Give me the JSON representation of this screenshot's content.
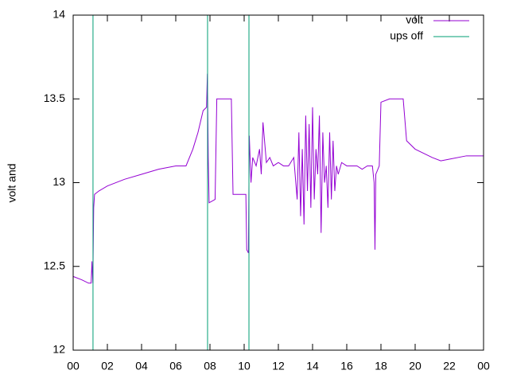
{
  "chart_data": {
    "type": "line",
    "ylabel": "volt and",
    "xlim": [
      0,
      24
    ],
    "xticks": [
      {
        "value": 0,
        "label": "00"
      },
      {
        "value": 2,
        "label": "02"
      },
      {
        "value": 4,
        "label": "04"
      },
      {
        "value": 6,
        "label": "06"
      },
      {
        "value": 8,
        "label": "08"
      },
      10,
      12,
      14,
      16,
      18,
      20,
      22,
      {
        "value": 24,
        "label": "00"
      }
    ],
    "ylim": [
      12,
      14
    ],
    "yticks": [
      12,
      12.5,
      13,
      13.5,
      14
    ],
    "legend": "top-right",
    "series": [
      {
        "name": "volt",
        "color": "#9400d3",
        "x": [
          0,
          0.5,
          0.9,
          1.05,
          1.1,
          1.15,
          1.2,
          1.25,
          1.5,
          2,
          3,
          4,
          5,
          6,
          6.6,
          7,
          7.3,
          7.6,
          7.8,
          7.85,
          7.9,
          7.95,
          8.3,
          8.4,
          9.25,
          9.35,
          10.1,
          10.15,
          10.25,
          10.3,
          10.4,
          10.5,
          10.7,
          10.9,
          11.0,
          11.1,
          11.3,
          11.5,
          11.7,
          12.0,
          12.3,
          12.6,
          12.9,
          13.1,
          13.2,
          13.3,
          13.4,
          13.5,
          13.6,
          13.7,
          13.8,
          13.9,
          14.0,
          14.1,
          14.2,
          14.3,
          14.4,
          14.5,
          14.6,
          14.7,
          14.8,
          14.9,
          15.0,
          15.1,
          15.2,
          15.3,
          15.4,
          15.5,
          15.7,
          16.0,
          16.3,
          16.6,
          16.9,
          17.2,
          17.5,
          17.6,
          17.65,
          17.7,
          17.9,
          18.0,
          18.5,
          19.3,
          19.5,
          20,
          21,
          21.5,
          22,
          23,
          24
        ],
        "values": [
          12.44,
          12.42,
          12.4,
          12.4,
          12.53,
          12.4,
          12.85,
          12.93,
          12.95,
          12.98,
          13.02,
          13.05,
          13.08,
          13.1,
          13.1,
          13.2,
          13.3,
          13.43,
          13.45,
          13.65,
          13.15,
          12.88,
          12.9,
          13.5,
          13.5,
          12.93,
          12.93,
          12.6,
          12.58,
          13.28,
          13.0,
          13.15,
          13.1,
          13.2,
          13.05,
          13.36,
          13.12,
          13.15,
          13.1,
          13.12,
          13.1,
          13.1,
          13.15,
          12.9,
          13.3,
          12.8,
          13.2,
          12.75,
          13.4,
          12.95,
          13.35,
          12.85,
          13.45,
          12.9,
          13.2,
          13.05,
          13.4,
          12.7,
          13.3,
          13.0,
          13.1,
          12.85,
          13.3,
          12.9,
          13.25,
          12.95,
          13.1,
          13.05,
          13.12,
          13.1,
          13.1,
          13.1,
          13.08,
          13.1,
          13.1,
          13.0,
          12.6,
          13.05,
          13.1,
          13.48,
          13.5,
          13.5,
          13.25,
          13.2,
          13.15,
          13.13,
          13.14,
          13.16,
          13.16
        ]
      },
      {
        "name": "ups off",
        "color": "#009e73",
        "x": [
          1.16,
          1.16,
          null,
          7.86,
          7.86,
          null,
          10.28,
          10.28
        ],
        "values": [
          12,
          14,
          null,
          12,
          14,
          null,
          12,
          14
        ]
      }
    ]
  }
}
